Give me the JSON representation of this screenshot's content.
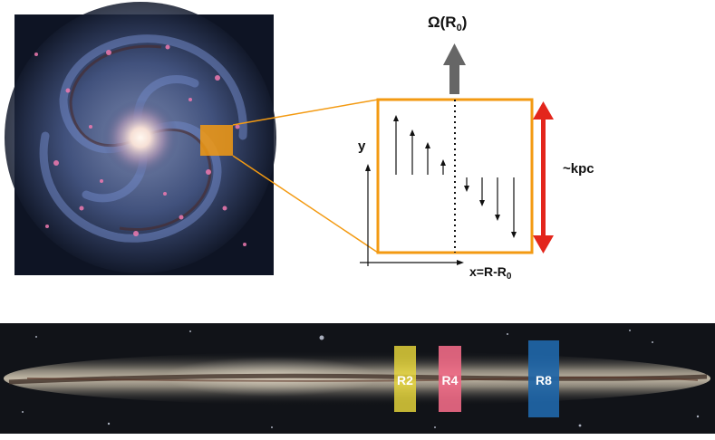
{
  "labels": {
    "omega": "Ω(R",
    "omega_sub": "0",
    "omega_close": ")",
    "y_axis": "y",
    "x_axis": "x=R-R",
    "x_axis_sub": "0",
    "scale": "~kpc"
  },
  "bands": [
    {
      "label": "R2",
      "color": "#e9d83a"
    },
    {
      "label": "R4",
      "color": "#f06a86"
    },
    {
      "label": "R8",
      "color": "#1f66a8"
    }
  ],
  "colors": {
    "box": "#f39a12",
    "scale_arrow": "#e3261c",
    "omega_arrow": "#666666"
  },
  "shear_profile": [
    0.36,
    0.28,
    0.2,
    0.1,
    -0.1,
    -0.2,
    -0.3,
    -0.38
  ]
}
